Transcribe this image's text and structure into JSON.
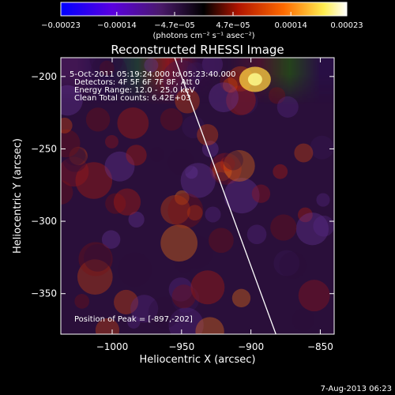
{
  "chart_data": {
    "type": "heatmap",
    "title": "Reconstructed RHESSI Image",
    "xlabel": "Heliocentric X (arcsec)",
    "ylabel": "Heliocentric Y (arcsec)",
    "xlim": [
      -1037,
      -840
    ],
    "ylim": [
      -378,
      -187
    ],
    "x_ticks": [
      {
        "value": -1000,
        "label": "−1000"
      },
      {
        "value": -950,
        "label": "−950"
      },
      {
        "value": -900,
        "label": "−900"
      },
      {
        "value": -850,
        "label": "−850"
      }
    ],
    "y_ticks": [
      {
        "value": -200,
        "label": "−200"
      },
      {
        "value": -250,
        "label": "−250"
      },
      {
        "value": -300,
        "label": "−300"
      },
      {
        "value": -350,
        "label": "−350"
      }
    ],
    "colorbar": {
      "range": [
        -0.00023,
        0.00023
      ],
      "tick_values": [
        -0.00023,
        -0.00014,
        -4.7e-05,
        4.7e-05,
        0.00014,
        0.00023
      ],
      "tick_labels": [
        "−0.00023",
        "−0.00014",
        "−4.7e−05",
        "4.7e−05",
        "0.00014",
        "0.00023"
      ],
      "unit_label": "(photons cm⁻² s⁻¹ asec⁻²)",
      "colors": [
        "#0000ff",
        "#6a00e0",
        "#000000",
        "#c81e00",
        "#ff6a00",
        "#ffff60",
        "#ffffff"
      ]
    },
    "annotations": [
      "5-Oct-2011 05:19:24.000 to 05:23:40.000",
      "Detectors: 4F 5F 6F 7F 8F, Att 0",
      "Energy Range: 12.0 - 25.0 keV",
      "Clean    Total counts: 6.42E+03",
      "Position of Peak = [-897,-202]"
    ],
    "limb_line": {
      "x": [
        -955,
        -882
      ],
      "y": [
        -187,
        -378
      ]
    },
    "grid": false,
    "colormap_image": "RHESSI reconstructed flux map, mostly mottled purple (negative) and red/orange (positive) blobs; brightest yellow near the top centre-right"
  },
  "footer": {
    "date_stamp": "7-Aug-2013 06:23"
  }
}
